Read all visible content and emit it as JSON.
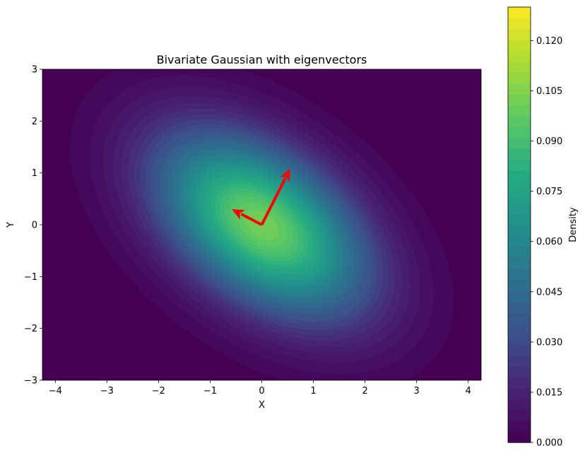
{
  "chart_data": {
    "type": "heatmap",
    "title": "Bivariate Gaussian with eigenvectors",
    "xlabel": "X",
    "ylabel": "Y",
    "xlim": [
      -4.25,
      4.25
    ],
    "ylim": [
      -3,
      3
    ],
    "x_ticks": [
      -4,
      -3,
      -2,
      -1,
      0,
      1,
      2,
      3,
      4
    ],
    "y_ticks": [
      -3,
      -2,
      -1,
      0,
      1,
      2,
      3
    ],
    "x_tick_labels": [
      "−4",
      "−3",
      "−2",
      "−1",
      "0",
      "1",
      "2",
      "3",
      "4"
    ],
    "y_tick_labels": [
      "−3",
      "−2",
      "−1",
      "0",
      "1",
      "2",
      "3"
    ],
    "colormap": "viridis",
    "contour_levels": 40,
    "mean": [
      0,
      0
    ],
    "covariance": [
      [
        2.0,
        -0.8
      ],
      [
        -0.8,
        1.5
      ]
    ],
    "eigenvectors": [
      {
        "start": [
          0,
          0
        ],
        "end": [
          0.55,
          1.08
        ],
        "color": "#ff0000"
      },
      {
        "start": [
          0,
          0
        ],
        "end": [
          -0.58,
          0.3
        ],
        "color": "#ff0000"
      }
    ],
    "colorbar": {
      "label": "Density",
      "min": 0.0,
      "max": 0.13,
      "ticks": [
        0.0,
        0.015,
        0.03,
        0.045,
        0.06,
        0.075,
        0.09,
        0.105,
        0.12
      ],
      "tick_labels": [
        "0.000",
        "0.015",
        "0.030",
        "0.045",
        "0.060",
        "0.075",
        "0.090",
        "0.105",
        "0.120"
      ]
    },
    "grid": false,
    "legend": "none"
  }
}
